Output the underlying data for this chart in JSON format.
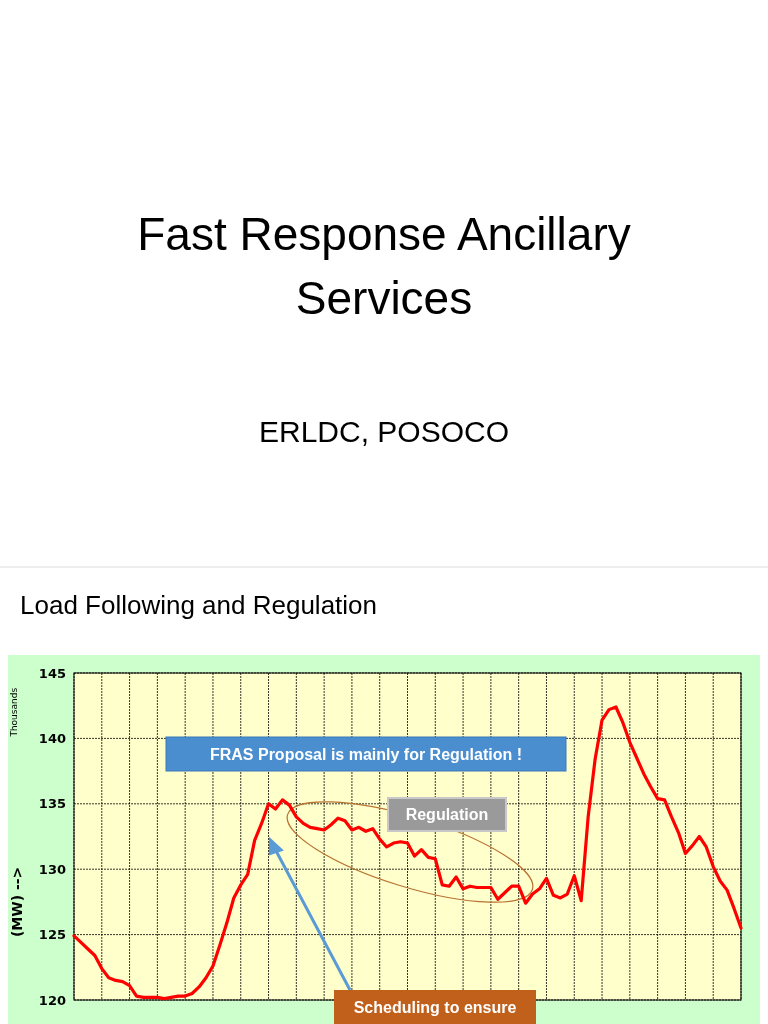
{
  "chart_data": {
    "type": "line",
    "title": "Fast Response Ancillary Services",
    "subtitle": "ERLDC, POSOCO",
    "ylabel": "(MW) -->",
    "annotations": [
      "Load Following and Regulation",
      "FRAS Proposal is mainly for Regulation !",
      "Regulation",
      "Scheduling to ensure",
      "Thousands"
    ],
    "categories": [
      null,
      null,
      null,
      null,
      null,
      null,
      null,
      null,
      null,
      null,
      null,
      null,
      null,
      null,
      null,
      null,
      null,
      null,
      null,
      null,
      null,
      null,
      null,
      null,
      null,
      null,
      null,
      null,
      null,
      null,
      null,
      null,
      null,
      null,
      null,
      null,
      null,
      null,
      null,
      null,
      null,
      null,
      null,
      null,
      null,
      null,
      null,
      null,
      null,
      null,
      null,
      null,
      null,
      null,
      null,
      null,
      null,
      null,
      null,
      null,
      null,
      null,
      null,
      null,
      null,
      null,
      null,
      null,
      null,
      null,
      null,
      null,
      null,
      null,
      null,
      null,
      null,
      null,
      null,
      null,
      null,
      null,
      null,
      null,
      null,
      null,
      null,
      null,
      null,
      null,
      null,
      null,
      null,
      null,
      null,
      null,
      null
    ],
    "ylim": [
      120,
      145
    ],
    "yticks": [
      120,
      125,
      130,
      135,
      140,
      145
    ],
    "grid": true,
    "line_style": "solid",
    "series": [
      {
        "color": "#ff0000",
        "values": [
          124.9,
          124.4,
          123.9,
          123.4,
          122.4,
          121.7,
          121.5,
          121.4,
          121.1,
          120.3,
          120.2,
          120.2,
          120.2,
          120.1,
          120.2,
          120.3,
          120.3,
          120.5,
          121.0,
          121.7,
          122.6,
          124.2,
          125.9,
          127.8,
          128.8,
          129.6,
          132.2,
          133.5,
          135.0,
          134.6,
          135.3,
          134.9,
          134.0,
          133.5,
          133.2,
          133.1,
          133.0,
          133.4,
          133.9,
          133.7,
          133.0,
          133.2,
          132.9,
          133.1,
          132.3,
          131.7,
          132.0,
          132.1,
          132.0,
          131.0,
          131.5,
          130.9,
          130.8,
          128.8,
          128.7,
          129.4,
          128.5,
          128.7,
          128.6,
          128.6,
          128.6,
          127.7,
          128.2,
          128.7,
          128.7,
          127.4,
          128.1,
          128.5,
          129.3,
          128.0,
          127.8,
          128.1,
          129.5,
          127.6,
          134.0,
          138.4,
          141.4,
          142.2,
          142.4,
          141.2,
          139.7,
          138.5,
          137.3,
          136.3,
          135.4,
          135.3,
          134.0,
          132.8,
          131.2,
          131.8,
          132.5,
          131.7,
          130.2,
          129.1,
          128.4,
          127.0,
          125.5
        ]
      }
    ]
  }
}
